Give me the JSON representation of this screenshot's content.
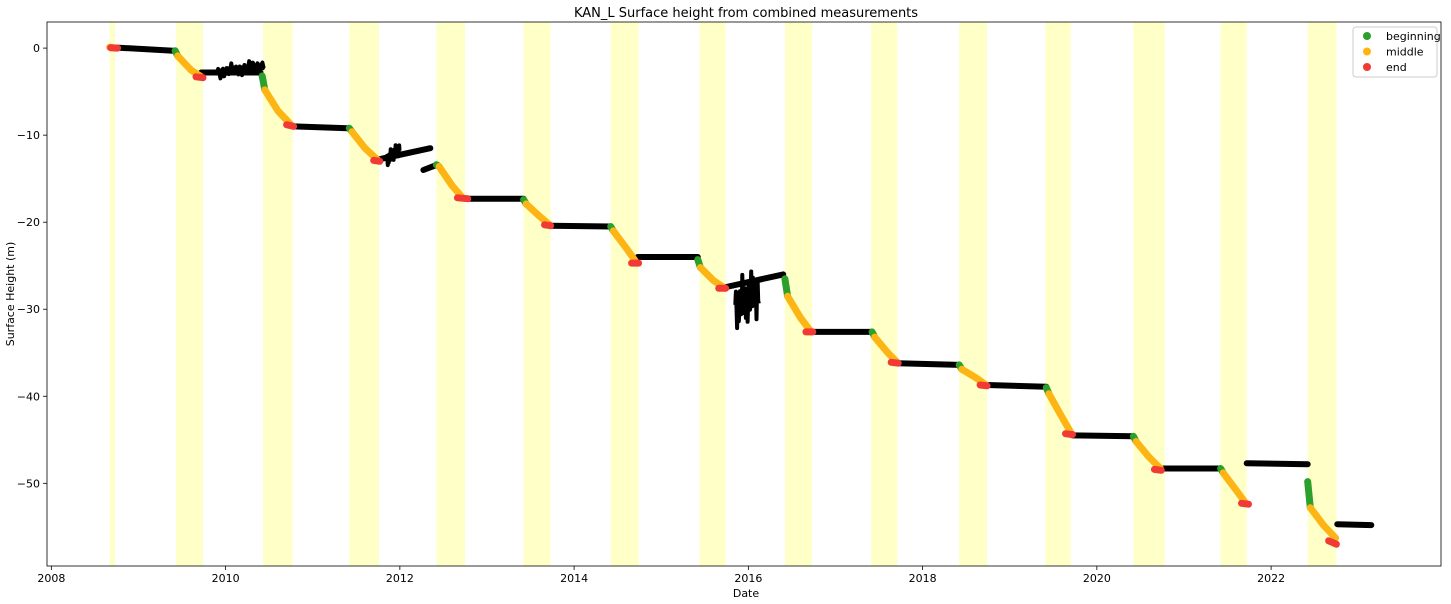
{
  "chart_data": {
    "type": "scatter",
    "title": "KAN_L Surface height from combined measurements",
    "xlabel": "Date",
    "ylabel": "Surface Height (m)",
    "x_is_date_years": true,
    "xlim": [
      2007.95,
      2023.95
    ],
    "ylim": [
      -59.5,
      3
    ],
    "xticks": [
      2008,
      2010,
      2012,
      2014,
      2016,
      2018,
      2020,
      2022
    ],
    "yticks": [
      0,
      -10,
      -20,
      -30,
      -40,
      -50
    ],
    "legend": {
      "position": "top-right",
      "entries": [
        {
          "label": "beginning",
          "color": "#2ca02c"
        },
        {
          "label": "middle",
          "color": "#fdb515"
        },
        {
          "label": "end",
          "color": "#f23a35"
        }
      ]
    },
    "shaded_periods_color": "#ffffc8",
    "shaded_periods": [
      [
        2008.67,
        2008.73
      ],
      [
        2009.43,
        2009.74
      ],
      [
        2010.43,
        2010.77
      ],
      [
        2011.42,
        2011.76
      ],
      [
        2012.42,
        2012.72
      ],
      [
        2012.72,
        2012.75
      ],
      [
        2013.42,
        2013.73
      ],
      [
        2014.42,
        2014.74
      ],
      [
        2015.44,
        2015.74
      ],
      [
        2016.42,
        2016.73
      ],
      [
        2017.41,
        2017.71
      ],
      [
        2018.42,
        2018.74
      ],
      [
        2019.41,
        2019.7
      ],
      [
        2020.42,
        2020.74
      ],
      [
        2020.74,
        2020.78
      ],
      [
        2021.42,
        2021.72
      ],
      [
        2022.42,
        2022.75
      ]
    ],
    "series": [
      {
        "name": "",
        "color": "#000000",
        "segments": [
          [
            [
              2008.67,
              0.1
            ],
            [
              2009.4,
              -0.3
            ]
          ],
          [
            [
              2009.72,
              -2.8
            ],
            [
              2010.4,
              -2.8
            ]
          ],
          [
            [
              2010.78,
              -9.0
            ],
            [
              2011.4,
              -9.2
            ]
          ],
          [
            [
              2011.75,
              -12.8
            ],
            [
              2012.35,
              -11.5
            ]
          ],
          [
            [
              2012.27,
              -14.0
            ],
            [
              2012.43,
              -13.4
            ]
          ],
          [
            [
              2012.75,
              -17.3
            ],
            [
              2013.42,
              -17.3
            ]
          ],
          [
            [
              2013.73,
              -20.4
            ],
            [
              2014.42,
              -20.5
            ]
          ],
          [
            [
              2014.73,
              -24.0
            ],
            [
              2015.42,
              -24.0
            ]
          ],
          [
            [
              2015.72,
              -27.5
            ],
            [
              2016.4,
              -26.0
            ]
          ],
          [
            [
              2016.73,
              -32.6
            ],
            [
              2017.42,
              -32.6
            ]
          ],
          [
            [
              2017.72,
              -36.2
            ],
            [
              2018.42,
              -36.4
            ]
          ],
          [
            [
              2018.74,
              -38.7
            ],
            [
              2019.42,
              -38.9
            ]
          ],
          [
            [
              2019.72,
              -44.5
            ],
            [
              2020.42,
              -44.6
            ]
          ],
          [
            [
              2020.75,
              -48.3
            ],
            [
              2021.42,
              -48.3
            ]
          ],
          [
            [
              2021.72,
              -47.7
            ],
            [
              2022.42,
              -47.8
            ]
          ],
          [
            [
              2022.76,
              -54.7
            ],
            [
              2023.15,
              -54.8
            ]
          ]
        ],
        "noise_segments": [
          [
            [
              2009.9,
              -2.8
            ],
            [
              2010.45,
              -2.0
            ]
          ],
          [
            [
              2011.85,
              -12.8
            ],
            [
              2012.0,
              -11.5
            ]
          ],
          [
            [
              2015.85,
              -29.5
            ],
            [
              2016.12,
              -28.0
            ]
          ]
        ]
      },
      {
        "name": "beginning",
        "color": "#2ca02c",
        "segments": [
          [
            [
              2009.42,
              -0.3
            ],
            [
              2009.45,
              -0.9
            ]
          ],
          [
            [
              2010.42,
              -3.2
            ],
            [
              2010.45,
              -4.8
            ]
          ],
          [
            [
              2011.42,
              -9.2
            ],
            [
              2011.45,
              -9.6
            ]
          ],
          [
            [
              2012.42,
              -13.4
            ],
            [
              2012.45,
              -13.6
            ]
          ],
          [
            [
              2013.42,
              -17.4
            ],
            [
              2013.45,
              -17.9
            ]
          ],
          [
            [
              2014.42,
              -20.5
            ],
            [
              2014.45,
              -21.0
            ]
          ],
          [
            [
              2015.42,
              -24.3
            ],
            [
              2015.45,
              -25.2
            ]
          ],
          [
            [
              2016.42,
              -26.5
            ],
            [
              2016.45,
              -28.5
            ]
          ],
          [
            [
              2017.42,
              -32.6
            ],
            [
              2017.45,
              -33.2
            ]
          ],
          [
            [
              2018.42,
              -36.4
            ],
            [
              2018.45,
              -36.9
            ]
          ],
          [
            [
              2019.42,
              -39.0
            ],
            [
              2019.45,
              -39.7
            ]
          ],
          [
            [
              2020.42,
              -44.6
            ],
            [
              2020.45,
              -45.2
            ]
          ],
          [
            [
              2021.42,
              -48.3
            ],
            [
              2021.45,
              -48.8
            ]
          ],
          [
            [
              2022.42,
              -49.8
            ],
            [
              2022.45,
              -52.8
            ]
          ]
        ]
      },
      {
        "name": "middle",
        "color": "#fdb515",
        "segments": [
          [
            [
              2008.67,
              0.1
            ],
            [
              2008.73,
              0.0
            ]
          ],
          [
            [
              2009.45,
              -0.9
            ],
            [
              2009.6,
              -2.5
            ],
            [
              2009.72,
              -3.3
            ]
          ],
          [
            [
              2010.45,
              -4.8
            ],
            [
              2010.6,
              -7.2
            ],
            [
              2010.75,
              -8.8
            ]
          ],
          [
            [
              2011.45,
              -9.6
            ],
            [
              2011.6,
              -11.5
            ],
            [
              2011.75,
              -12.9
            ]
          ],
          [
            [
              2012.45,
              -13.6
            ],
            [
              2012.6,
              -15.8
            ],
            [
              2012.72,
              -17.2
            ]
          ],
          [
            [
              2013.45,
              -17.9
            ],
            [
              2013.6,
              -19.3
            ],
            [
              2013.72,
              -20.3
            ]
          ],
          [
            [
              2014.45,
              -21.0
            ],
            [
              2014.6,
              -23.0
            ],
            [
              2014.72,
              -24.7
            ]
          ],
          [
            [
              2015.45,
              -25.2
            ],
            [
              2015.6,
              -26.7
            ],
            [
              2015.73,
              -27.6
            ]
          ],
          [
            [
              2016.45,
              -28.5
            ],
            [
              2016.6,
              -31.0
            ],
            [
              2016.72,
              -32.6
            ]
          ],
          [
            [
              2017.45,
              -33.2
            ],
            [
              2017.6,
              -35.0
            ],
            [
              2017.71,
              -36.1
            ]
          ],
          [
            [
              2018.45,
              -36.9
            ],
            [
              2018.6,
              -37.8
            ],
            [
              2018.73,
              -38.7
            ]
          ],
          [
            [
              2019.45,
              -39.7
            ],
            [
              2019.6,
              -42.4
            ],
            [
              2019.71,
              -44.3
            ]
          ],
          [
            [
              2020.45,
              -45.2
            ],
            [
              2020.6,
              -47.0
            ],
            [
              2020.73,
              -48.3
            ]
          ],
          [
            [
              2021.45,
              -48.8
            ],
            [
              2021.6,
              -50.8
            ],
            [
              2021.71,
              -52.3
            ]
          ],
          [
            [
              2022.45,
              -52.8
            ],
            [
              2022.6,
              -54.8
            ],
            [
              2022.74,
              -56.3
            ]
          ]
        ]
      },
      {
        "name": "end",
        "color": "#f23a35",
        "segments": [
          [
            [
              2008.68,
              0.05
            ],
            [
              2008.76,
              0.0
            ]
          ],
          [
            [
              2009.66,
              -3.3
            ],
            [
              2009.74,
              -3.4
            ]
          ],
          [
            [
              2010.7,
              -8.8
            ],
            [
              2010.78,
              -9.0
            ]
          ],
          [
            [
              2011.7,
              -12.9
            ],
            [
              2011.77,
              -13.0
            ]
          ],
          [
            [
              2012.66,
              -17.2
            ],
            [
              2012.78,
              -17.3
            ]
          ],
          [
            [
              2013.66,
              -20.3
            ],
            [
              2013.73,
              -20.4
            ]
          ],
          [
            [
              2014.66,
              -24.7
            ],
            [
              2014.74,
              -24.7
            ]
          ],
          [
            [
              2015.66,
              -27.6
            ],
            [
              2015.74,
              -27.6
            ]
          ],
          [
            [
              2016.66,
              -32.6
            ],
            [
              2016.74,
              -32.6
            ]
          ],
          [
            [
              2017.64,
              -36.1
            ],
            [
              2017.72,
              -36.2
            ]
          ],
          [
            [
              2018.66,
              -38.7
            ],
            [
              2018.74,
              -38.8
            ]
          ],
          [
            [
              2019.64,
              -44.3
            ],
            [
              2019.72,
              -44.4
            ]
          ],
          [
            [
              2020.66,
              -48.4
            ],
            [
              2020.74,
              -48.5
            ]
          ],
          [
            [
              2021.66,
              -52.3
            ],
            [
              2021.74,
              -52.4
            ]
          ],
          [
            [
              2022.66,
              -56.6
            ],
            [
              2022.75,
              -57.0
            ]
          ]
        ]
      }
    ]
  }
}
